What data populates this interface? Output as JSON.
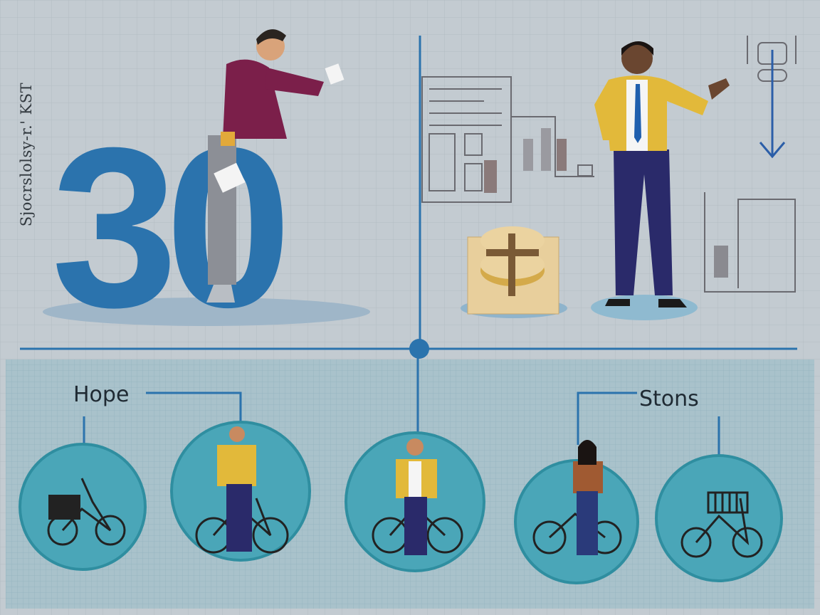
{
  "side_caption": "Sjocrslolsy-r.' KST",
  "headline_number": "30",
  "labels": {
    "left": "Hope",
    "right": "Stons"
  },
  "circles": [
    {
      "content": "bicycle-with-basket"
    },
    {
      "content": "man-with-bicycle"
    },
    {
      "content": "bearded-man-with-bicycle"
    },
    {
      "content": "woman-with-bicycle"
    },
    {
      "content": "cargo-bicycle"
    }
  ],
  "colors": {
    "background": "#c3cbd1",
    "lower_panel": "#a8c2cb",
    "accent_blue": "#2b73ad",
    "circle_fill": "#4aa6b8",
    "circle_ring": "#2f8ea0",
    "yellow": "#e2b93a",
    "navy": "#2a2a6a",
    "maroon": "#7b1f4a"
  }
}
